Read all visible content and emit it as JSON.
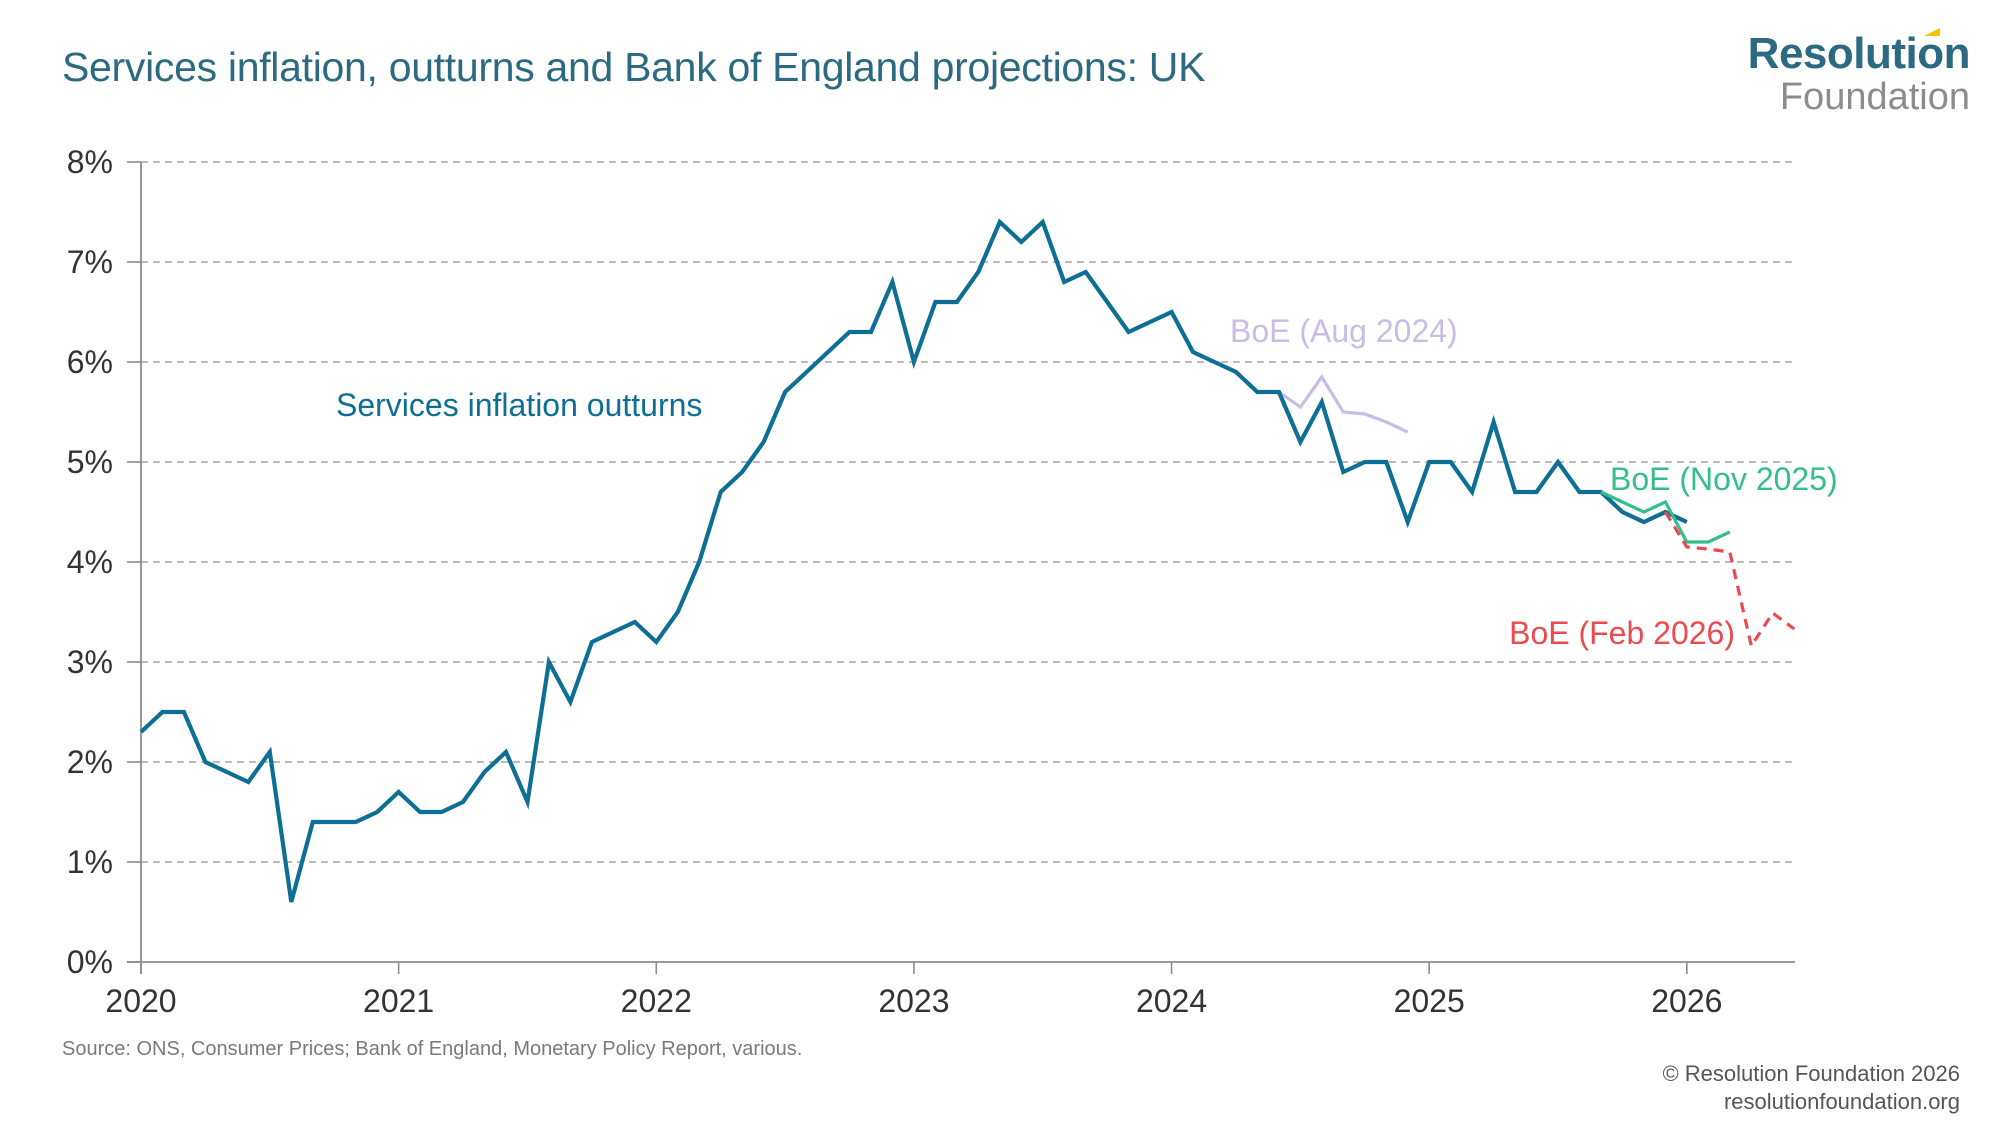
{
  "header": {
    "title": "Services inflation, outturns and Bank of England projections: UK",
    "logo_top": "Resolution",
    "logo_bottom": "Foundation"
  },
  "footer": {
    "source": "Source: ONS, Consumer Prices; Bank of England, Monetary Policy Report, various.",
    "copyright": "© Resolution Foundation 2026",
    "website": "resolutionfoundation.org"
  },
  "colors": {
    "outturns": "#0e6f94",
    "boe_aug_2024": "#c9bde6",
    "boe_nov_2025": "#34be8c",
    "boe_feb_2026": "#ea4b4f",
    "grid": "#a6a6a6",
    "axis": "#8c8c8c",
    "title": "#2b6a80"
  },
  "chart_data": {
    "type": "line",
    "title": "Services inflation, outturns and Bank of England projections: UK",
    "xlabel": "",
    "ylabel": "",
    "ylim": [
      0,
      8
    ],
    "xlim": [
      "2020-01",
      "2026-06"
    ],
    "grid": true,
    "y_ticks": [
      "0%",
      "1%",
      "2%",
      "3%",
      "4%",
      "5%",
      "6%",
      "7%",
      "8%"
    ],
    "y_tick_values": [
      0,
      1,
      2,
      3,
      4,
      5,
      6,
      7,
      8
    ],
    "x_ticks": [
      "2020",
      "2021",
      "2022",
      "2023",
      "2024",
      "2025",
      "2026"
    ],
    "series": [
      {
        "name": "Services inflation outturns",
        "label": "Services inflation outturns",
        "color_key": "outturns",
        "style": "solid",
        "start": "2020-01",
        "values": [
          2.3,
          2.5,
          2.5,
          2.0,
          1.9,
          1.8,
          2.1,
          0.6,
          1.4,
          1.4,
          1.4,
          1.5,
          1.7,
          1.5,
          1.5,
          1.6,
          1.9,
          2.1,
          1.6,
          3.0,
          2.6,
          3.2,
          3.3,
          3.4,
          3.2,
          3.5,
          4.0,
          4.7,
          4.9,
          5.2,
          5.7,
          5.9,
          6.1,
          6.3,
          6.3,
          6.8,
          6.0,
          6.6,
          6.6,
          6.9,
          7.4,
          7.2,
          7.4,
          6.8,
          6.9,
          6.6,
          6.3,
          6.4,
          6.5,
          6.1,
          6.0,
          5.9,
          5.7,
          5.7,
          5.2,
          5.6,
          4.9,
          5.0,
          5.0,
          4.4,
          5.0,
          5.0,
          4.7,
          5.4,
          4.7,
          4.7,
          5.0,
          4.7,
          4.7,
          4.5,
          4.4,
          4.5,
          4.4
        ]
      },
      {
        "name": "BoE (Aug 2024)",
        "label": "BoE (Aug 2024)",
        "color_key": "boe_aug_2024",
        "style": "solid",
        "start": "2024-06",
        "values": [
          5.7,
          5.55,
          5.85,
          5.5,
          5.48,
          5.4,
          5.3
        ]
      },
      {
        "name": "BoE (Nov 2025)",
        "label": "BoE (Nov 2025)",
        "color_key": "boe_nov_2025",
        "style": "solid",
        "start": "2025-09",
        "values": [
          4.7,
          4.6,
          4.5,
          4.6,
          4.2,
          4.2,
          4.3
        ]
      },
      {
        "name": "BoE (Feb 2026)",
        "label": "BoE (Feb 2026)",
        "color_key": "boe_feb_2026",
        "style": "dashed",
        "start": "2025-12",
        "values": [
          4.5,
          4.15,
          4.13,
          4.1,
          3.16,
          3.49,
          3.33
        ]
      }
    ]
  }
}
